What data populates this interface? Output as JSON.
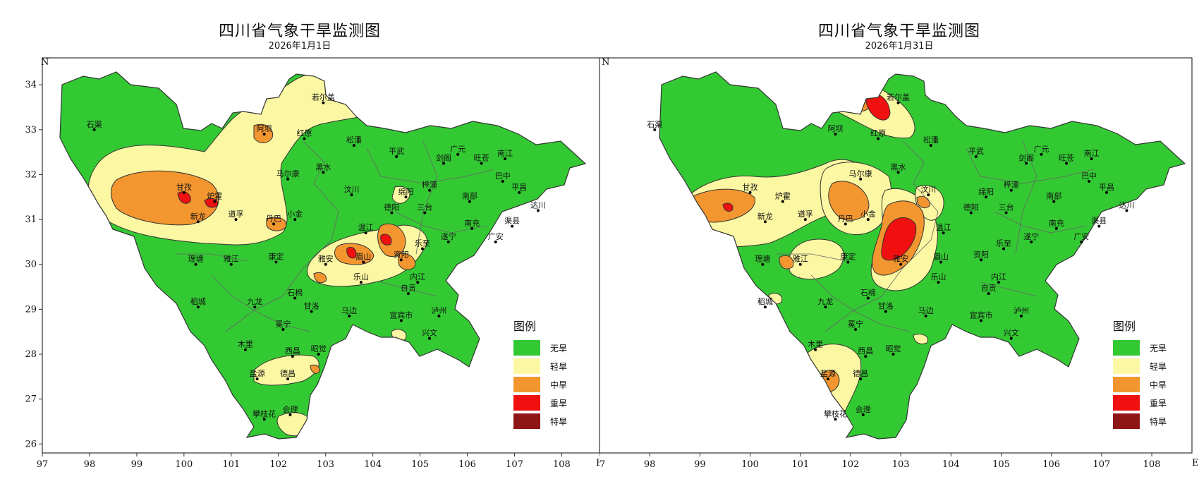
{
  "colors": {
    "none": "#33c933",
    "light": "#fbf7a2",
    "moderate": "#f3962f",
    "severe": "#f01010",
    "extreme": "#8e1616",
    "boundary": "#555555"
  },
  "axis": {
    "x_ticks": [
      "97",
      "98",
      "99",
      "100",
      "101",
      "102",
      "103",
      "104",
      "105",
      "106",
      "107",
      "108"
    ],
    "y_ticks": [
      "26",
      "27",
      "28",
      "29",
      "30",
      "31",
      "32",
      "33",
      "34"
    ],
    "x_dir": "E",
    "y_dir": "N",
    "lon_range": [
      97,
      108.8
    ],
    "lat_range": [
      25.8,
      34.6
    ]
  },
  "legend": {
    "title": "图例",
    "items": [
      {
        "key": "none",
        "label": "无旱"
      },
      {
        "key": "light",
        "label": "轻旱"
      },
      {
        "key": "moderate",
        "label": "中旱"
      },
      {
        "key": "severe",
        "label": "重旱"
      },
      {
        "key": "extreme",
        "label": "特旱"
      }
    ]
  },
  "panels": [
    {
      "title": "四川省气象干旱监测图",
      "date": "2026年1月1日"
    },
    {
      "title": "四川省气象干旱监测图",
      "date": "2026年1月31日"
    }
  ],
  "cities": [
    {
      "name": "石渠",
      "lon": 98.1,
      "lat": 33.0
    },
    {
      "name": "若尔盖",
      "lon": 102.95,
      "lat": 33.6
    },
    {
      "name": "阿坝",
      "lon": 101.7,
      "lat": 32.9
    },
    {
      "name": "红原",
      "lon": 102.55,
      "lat": 32.8
    },
    {
      "name": "松潘",
      "lon": 103.6,
      "lat": 32.65
    },
    {
      "name": "平武",
      "lon": 104.5,
      "lat": 32.4
    },
    {
      "name": "广元",
      "lon": 105.8,
      "lat": 32.45
    },
    {
      "name": "旺苍",
      "lon": 106.3,
      "lat": 32.25
    },
    {
      "name": "南江",
      "lon": 106.8,
      "lat": 32.35
    },
    {
      "name": "剑阁",
      "lon": 105.5,
      "lat": 32.25
    },
    {
      "name": "马尔康",
      "lon": 102.2,
      "lat": 31.9
    },
    {
      "name": "黑水",
      "lon": 102.95,
      "lat": 32.05
    },
    {
      "name": "巴中",
      "lon": 106.75,
      "lat": 31.85
    },
    {
      "name": "甘孜",
      "lon": 100.0,
      "lat": 31.6
    },
    {
      "name": "炉霍",
      "lon": 100.65,
      "lat": 31.4
    },
    {
      "name": "汶川",
      "lon": 103.55,
      "lat": 31.55
    },
    {
      "name": "绵阳",
      "lon": 104.7,
      "lat": 31.5
    },
    {
      "name": "梓潼",
      "lon": 105.2,
      "lat": 31.65
    },
    {
      "name": "平昌",
      "lon": 107.1,
      "lat": 31.6
    },
    {
      "name": "南部",
      "lon": 106.05,
      "lat": 31.4
    },
    {
      "name": "德阳",
      "lon": 104.4,
      "lat": 31.15
    },
    {
      "name": "三台",
      "lon": 105.1,
      "lat": 31.15
    },
    {
      "name": "达川",
      "lon": 107.5,
      "lat": 31.2
    },
    {
      "name": "新龙",
      "lon": 100.3,
      "lat": 30.95
    },
    {
      "name": "道孚",
      "lon": 101.1,
      "lat": 31.0
    },
    {
      "name": "丹巴",
      "lon": 101.9,
      "lat": 30.9
    },
    {
      "name": "小金",
      "lon": 102.35,
      "lat": 31.0
    },
    {
      "name": "南充",
      "lon": 106.1,
      "lat": 30.8
    },
    {
      "name": "渠县",
      "lon": 106.95,
      "lat": 30.85
    },
    {
      "name": "温江",
      "lon": 103.85,
      "lat": 30.7
    },
    {
      "name": "乐至",
      "lon": 105.05,
      "lat": 30.35
    },
    {
      "name": "遂宁",
      "lon": 105.6,
      "lat": 30.5
    },
    {
      "name": "广安",
      "lon": 106.6,
      "lat": 30.5
    },
    {
      "name": "理塘",
      "lon": 100.25,
      "lat": 30.0
    },
    {
      "name": "雅江",
      "lon": 101.0,
      "lat": 30.0
    },
    {
      "name": "康定",
      "lon": 101.95,
      "lat": 30.05
    },
    {
      "name": "雅安",
      "lon": 103.0,
      "lat": 30.0
    },
    {
      "name": "眉山",
      "lon": 103.8,
      "lat": 30.05
    },
    {
      "name": "资阳",
      "lon": 104.6,
      "lat": 30.1
    },
    {
      "name": "内江",
      "lon": 104.95,
      "lat": 29.6
    },
    {
      "name": "乐山",
      "lon": 103.75,
      "lat": 29.6
    },
    {
      "name": "自贡",
      "lon": 104.75,
      "lat": 29.35
    },
    {
      "name": "石棉",
      "lon": 102.35,
      "lat": 29.25
    },
    {
      "name": "甘洛",
      "lon": 102.7,
      "lat": 28.95
    },
    {
      "name": "马边",
      "lon": 103.5,
      "lat": 28.85
    },
    {
      "name": "宜宾市",
      "lon": 104.6,
      "lat": 28.75
    },
    {
      "name": "泸州",
      "lon": 105.4,
      "lat": 28.85
    },
    {
      "name": "稻城",
      "lon": 100.3,
      "lat": 29.05
    },
    {
      "name": "九龙",
      "lon": 101.5,
      "lat": 29.05
    },
    {
      "name": "冕宁",
      "lon": 102.1,
      "lat": 28.55
    },
    {
      "name": "兴文",
      "lon": 105.2,
      "lat": 28.35
    },
    {
      "name": "木里",
      "lon": 101.3,
      "lat": 28.1
    },
    {
      "name": "西昌",
      "lon": 102.3,
      "lat": 27.95
    },
    {
      "name": "昭觉",
      "lon": 102.85,
      "lat": 28.0
    },
    {
      "name": "盐源",
      "lon": 101.55,
      "lat": 27.45
    },
    {
      "name": "德昌",
      "lon": 102.2,
      "lat": 27.45
    },
    {
      "name": "攀枝花",
      "lon": 101.7,
      "lat": 26.55
    },
    {
      "name": "会理",
      "lon": 102.25,
      "lat": 26.65
    }
  ]
}
